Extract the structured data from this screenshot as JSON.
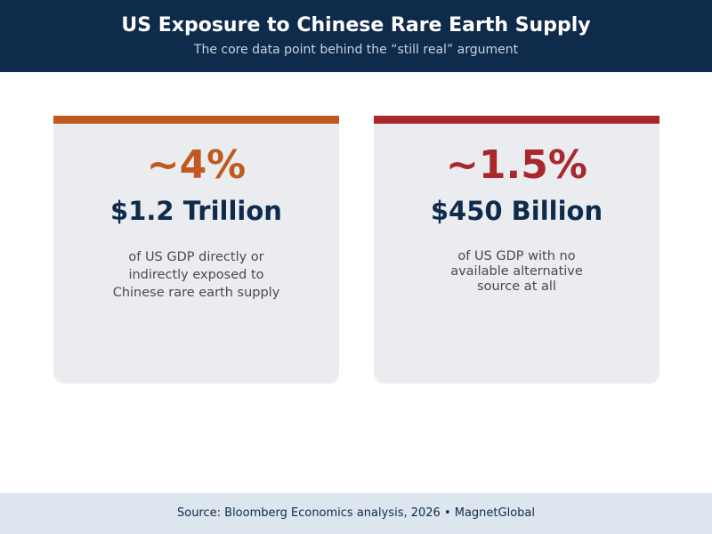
{
  "header": {
    "title": "US Exposure to Chinese Rare Earth Supply",
    "subtitle": "The core data point behind the “still real” argument"
  },
  "cards": [
    {
      "percentage": "~4%",
      "amount": "$1.2 Trillion",
      "description": "of US GDP directly or indirectly exposed to Chinese rare earth supply",
      "accent_color": "#c05a20"
    },
    {
      "percentage": "~1.5%",
      "amount": "$450 Billion",
      "description": "of US GDP with no available alternative source at all",
      "accent_color": "#a8282c"
    }
  ],
  "footer": {
    "text": "Source: Bloomberg Economics analysis, 2026  •  MagnetGlobal"
  },
  "colors": {
    "header_background": "#0f2b4b",
    "card_background": "#ebecf0",
    "footer_background": "#dde5ef"
  }
}
